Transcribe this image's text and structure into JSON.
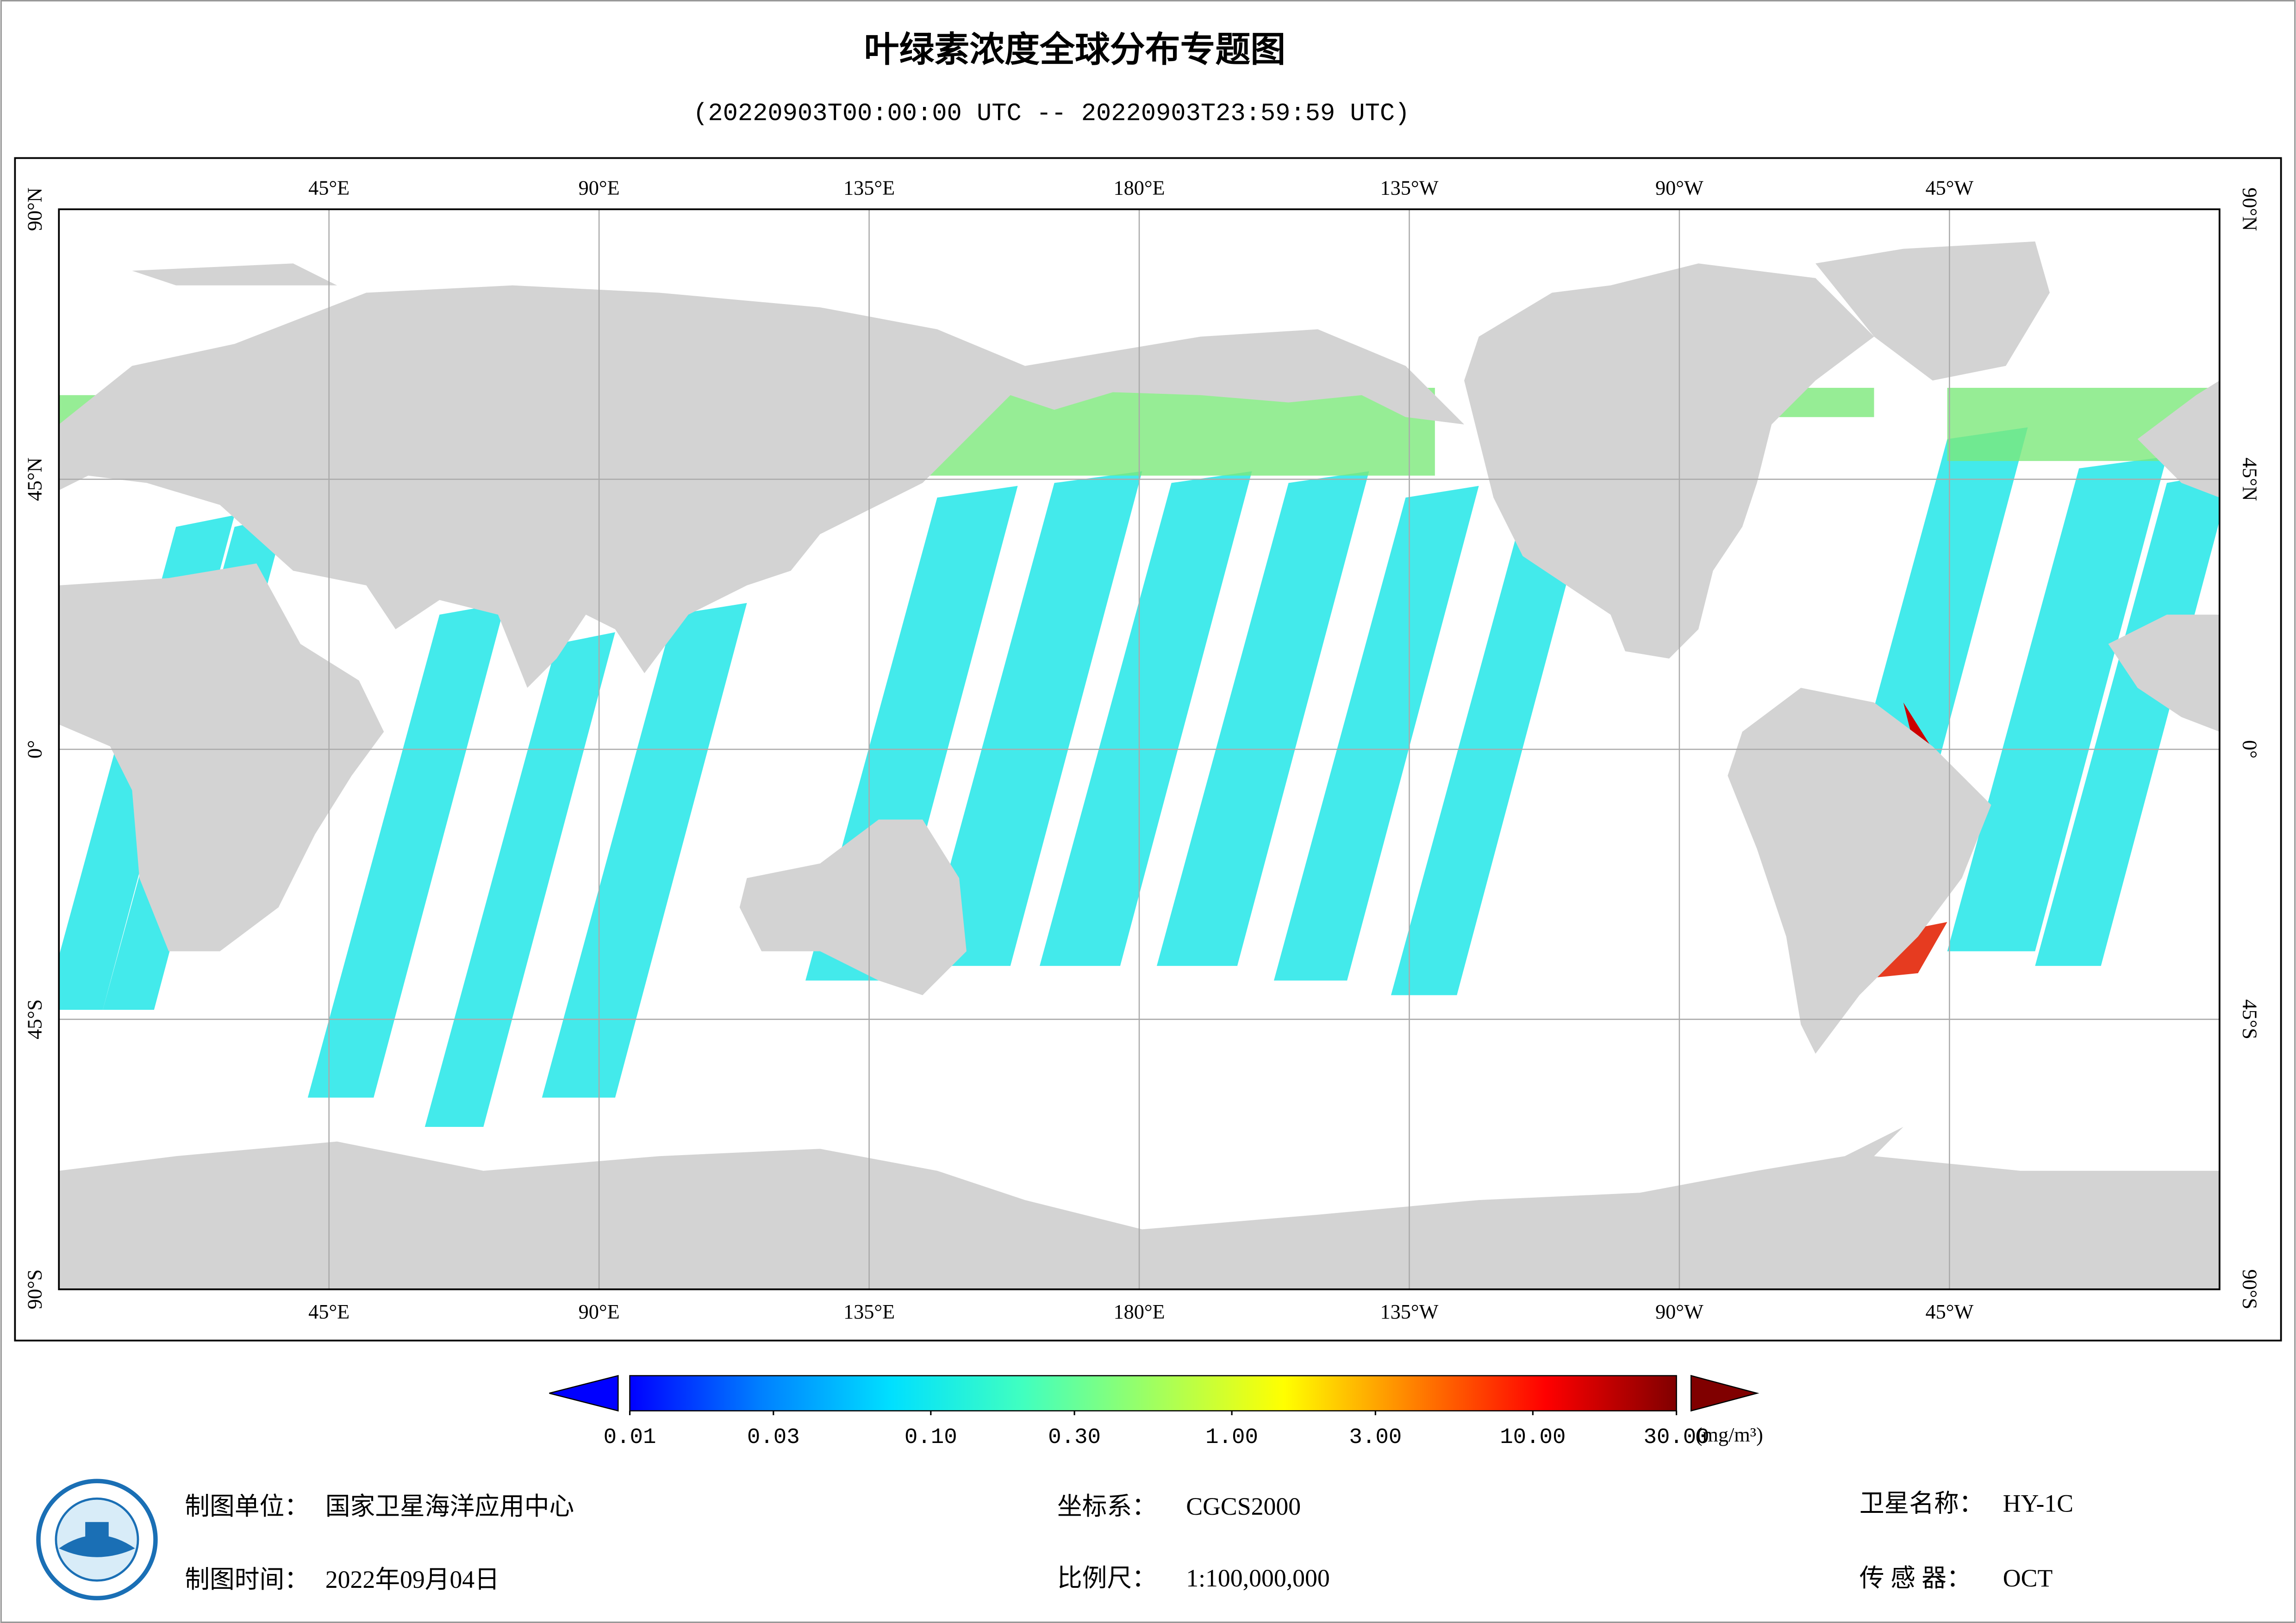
{
  "map": {
    "title": "叶绿素浓度全球分布专题图",
    "subtitle": "(20220903T00:00:00 UTC -- 20220903T23:59:59 UTC)",
    "lonlim": [
      0,
      360
    ],
    "latlim": [
      -90,
      90
    ],
    "lonticks": [
      {
        "value": 45,
        "label": "45°E"
      },
      {
        "value": 90,
        "label": "90°E"
      },
      {
        "value": 135,
        "label": "135°E"
      },
      {
        "value": 180,
        "label": "180°E"
      },
      {
        "value": 225,
        "label": "135°W"
      },
      {
        "value": 270,
        "label": "90°W"
      },
      {
        "value": 315,
        "label": "45°W"
      }
    ],
    "latticks": [
      {
        "value": 90,
        "label": "90°N"
      },
      {
        "value": 45,
        "label": "45°N"
      },
      {
        "value": 0,
        "label": "0°"
      },
      {
        "value": -45,
        "label": "45°S"
      },
      {
        "value": -90,
        "label": "90°S"
      }
    ],
    "grid": true,
    "land_color": "#d3d3d3",
    "colorbar": {
      "scale": "log",
      "lim": [
        0.01,
        30
      ],
      "ticks": [
        0.01,
        0.03,
        {
          "value": 0.1,
          "label": "0.10"
        },
        {
          "value": 0.3,
          "label": "0.30"
        },
        {
          "value": 1,
          "label": "1.00"
        },
        {
          "value": 3,
          "label": "3.00"
        },
        {
          "value": 10,
          "label": "10.00"
        },
        {
          "value": 30,
          "label": "30.00"
        }
      ],
      "unit": "(mg/m³)",
      "colors": [
        "#0000ff",
        "#0080ff",
        "#00e0ff",
        "#40ffc0",
        "#a0ff60",
        "#ffff00",
        "#ff8000",
        "#ff0000",
        "#800000"
      ]
    }
  },
  "footer": {
    "unit": {
      "label": "制图单位：",
      "value": "国家卫星海洋应用中心"
    },
    "date": {
      "label": "制图时间：",
      "value": "2022年09月04日"
    },
    "crs": {
      "label": "坐标系：",
      "value": "CGCS2000"
    },
    "scale": {
      "label": "比例尺：",
      "value": "1:100,000,000"
    },
    "satellite": {
      "label": "卫星名称：",
      "value": "HY-1C"
    },
    "sensor": {
      "label": "传 感 器：",
      "value": "OCT"
    }
  }
}
